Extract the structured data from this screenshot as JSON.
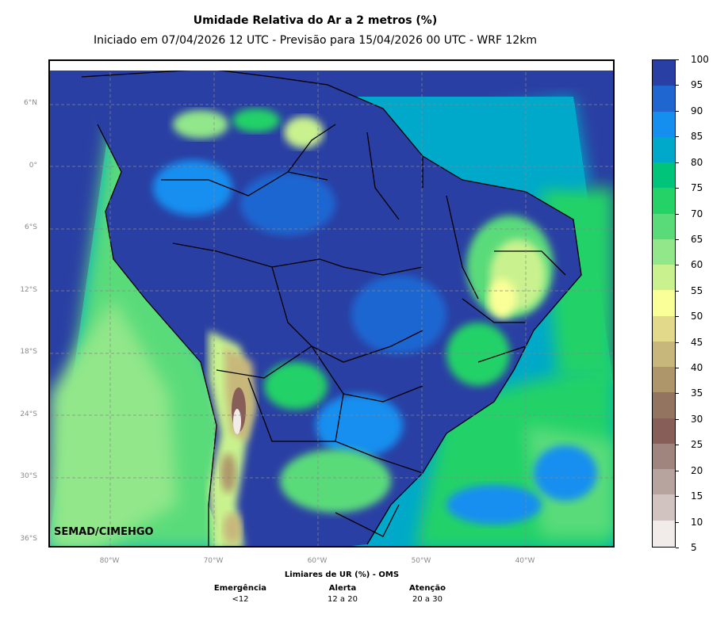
{
  "header": {
    "title": "Umidade Relativa do Ar a 2 metros (%)",
    "subtitle": "Iniciado em 07/04/2026 12 UTC - Previsão para 15/04/2026 00 UTC - WRF 12km"
  },
  "map": {
    "latitude_labels": [
      "6°N",
      "0°",
      "6°S",
      "12°S",
      "18°S",
      "24°S",
      "30°S",
      "36°S"
    ],
    "longitude_labels": [
      "80°W",
      "70°W",
      "60°W",
      "50°W",
      "40°W"
    ],
    "credit": "SEMAD/CIMEHGO",
    "projection": "mercator",
    "land_outline": "grid-icon"
  },
  "colorbar": {
    "ticks": [
      "100",
      "95",
      "90",
      "85",
      "80",
      "75",
      "70",
      "65",
      "60",
      "55",
      "50",
      "45",
      "40",
      "35",
      "30",
      "25",
      "20",
      "15",
      "10",
      "5"
    ],
    "colors_top_to_bottom": [
      "#2a3fa3",
      "#1f66d1",
      "#148ff0",
      "#00a9c9",
      "#00c47a",
      "#24d268",
      "#5adb7a",
      "#92e78a",
      "#c9f28e",
      "#fbff97",
      "#e2d98a",
      "#c8b77a",
      "#ae966a",
      "#937460",
      "#875e58",
      "#a0857e",
      "#b8a49f",
      "#d1c4c0",
      "#f1ecea"
    ]
  },
  "thresholds": {
    "title": "Limiares de UR (%) - OMS",
    "levels": [
      {
        "label": "Emergência",
        "range": "<12"
      },
      {
        "label": "Alerta",
        "range": "12 a 20"
      },
      {
        "label": "Atenção",
        "range": "20 a 30"
      }
    ]
  }
}
